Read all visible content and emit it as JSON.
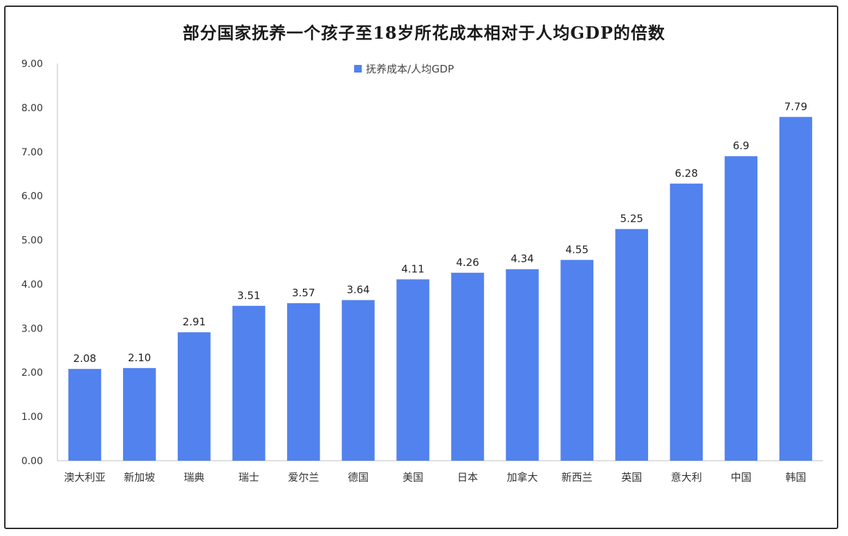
{
  "chart_data": {
    "type": "bar",
    "title": "部分国家抚养一个孩子至18岁所花成本相对于人均GDP的倍数",
    "categories": [
      "澳大利亚",
      "新加坡",
      "瑞典",
      "瑞士",
      "爱尔兰",
      "德国",
      "美国",
      "日本",
      "加拿大",
      "新西兰",
      "英国",
      "意大利",
      "中国",
      "韩国"
    ],
    "series": [
      {
        "name": "抚养成本/人均GDP",
        "values": [
          2.08,
          2.1,
          2.91,
          3.51,
          3.57,
          3.64,
          4.11,
          4.26,
          4.34,
          4.55,
          5.25,
          6.28,
          6.9,
          7.79
        ]
      }
    ],
    "data_labels": [
      "2.08",
      "2.10",
      "2.91",
      "3.51",
      "3.57",
      "3.64",
      "4.11",
      "4.26",
      "4.34",
      "4.55",
      "5.25",
      "6.28",
      "6.9",
      "7.79"
    ],
    "y_ticks": [
      "0.00",
      "1.00",
      "2.00",
      "3.00",
      "4.00",
      "5.00",
      "6.00",
      "7.00",
      "8.00",
      "9.00"
    ],
    "ylim": [
      0,
      9
    ],
    "legend_position": "top-left",
    "grid": false,
    "colors": {
      "bar": "#5282ee",
      "axis": "#bfbfbf"
    }
  }
}
